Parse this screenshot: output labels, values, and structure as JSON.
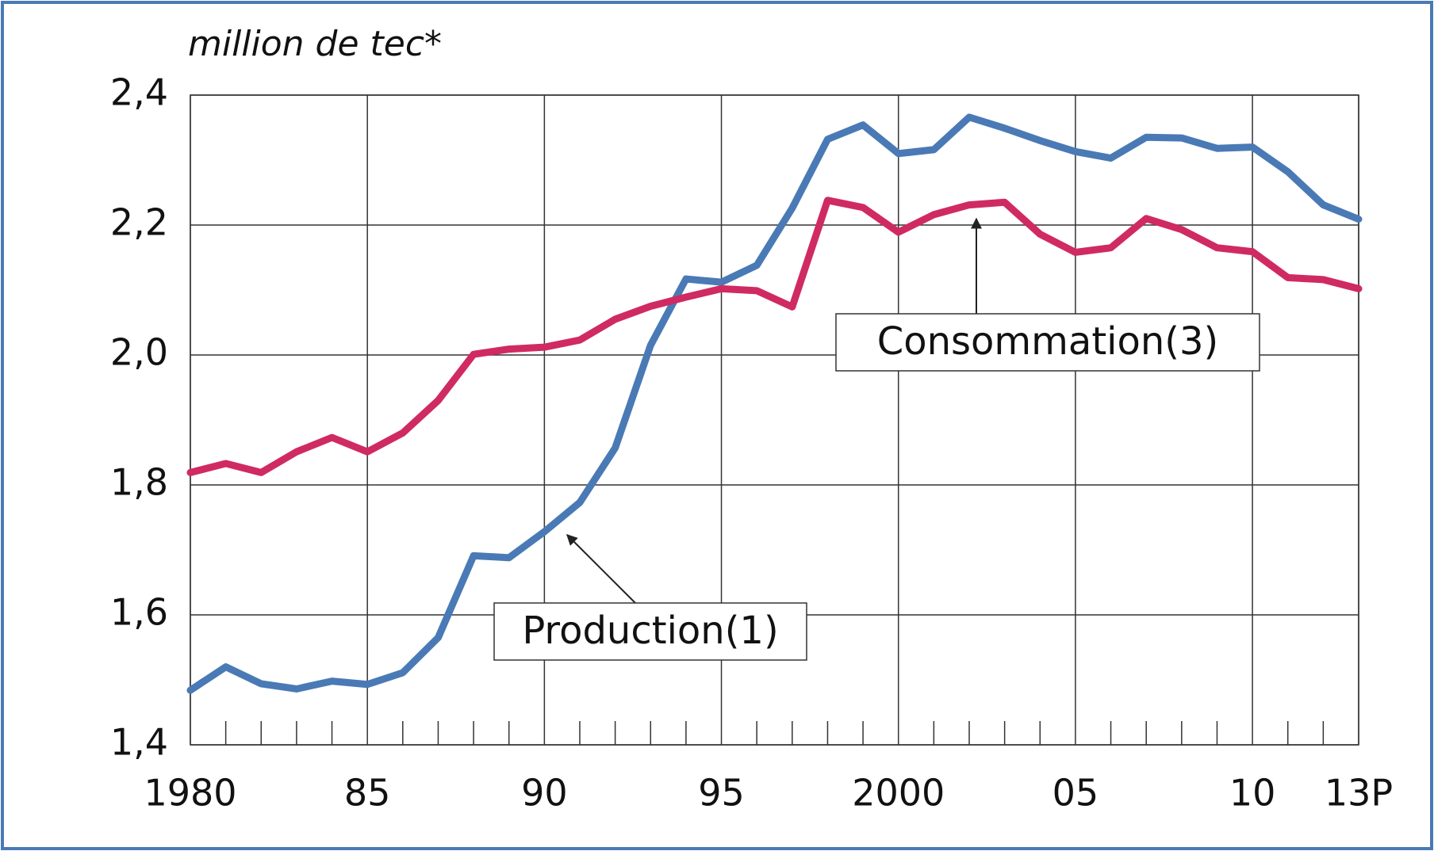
{
  "chart_data": {
    "type": "line",
    "y_axis_label": "million de tec*",
    "x": [
      1980,
      1981,
      1982,
      1983,
      1984,
      1985,
      1986,
      1987,
      1988,
      1989,
      1990,
      1991,
      1992,
      1993,
      1994,
      1995,
      1996,
      1997,
      1998,
      1999,
      2000,
      2001,
      2002,
      2003,
      2004,
      2005,
      2006,
      2007,
      2008,
      2009,
      2010,
      2011,
      2012,
      2013
    ],
    "series": [
      {
        "name": "Production(1)",
        "color": "#4a7ab5",
        "values": [
          1.484,
          1.52,
          1.494,
          1.486,
          1.498,
          1.493,
          1.511,
          1.565,
          1.691,
          1.688,
          1.728,
          1.773,
          1.857,
          2.015,
          2.117,
          2.112,
          2.138,
          2.226,
          2.332,
          2.354,
          2.31,
          2.316,
          2.366,
          2.349,
          2.33,
          2.313,
          2.303,
          2.335,
          2.334,
          2.318,
          2.32,
          2.282,
          2.231,
          2.209
        ]
      },
      {
        "name": "Consommation(3)",
        "color": "#d02a62",
        "values": [
          1.819,
          1.833,
          1.819,
          1.851,
          1.873,
          1.851,
          1.88,
          1.93,
          2.001,
          2.009,
          2.012,
          2.023,
          2.055,
          2.075,
          2.089,
          2.102,
          2.099,
          2.074,
          2.238,
          2.227,
          2.189,
          2.216,
          2.231,
          2.235,
          2.186,
          2.158,
          2.165,
          2.21,
          2.193,
          2.165,
          2.159,
          2.119,
          2.116,
          2.102
        ]
      }
    ],
    "xlim": [
      1980,
      2013
    ],
    "xticks": [
      1980,
      {
        "value": 1985,
        "label": "85"
      },
      {
        "value": 1990,
        "label": "90"
      },
      {
        "value": 1995,
        "label": "95"
      },
      2000,
      {
        "value": 2005,
        "label": "05"
      },
      {
        "value": 2010,
        "label": "10"
      },
      {
        "value": 2013,
        "label": "13P"
      }
    ],
    "xminorticks": [
      1981,
      1982,
      1983,
      1984,
      1986,
      1987,
      1988,
      1989,
      1991,
      1992,
      1993,
      1994,
      1996,
      1997,
      1998,
      1999,
      2001,
      2002,
      2003,
      2004,
      2006,
      2007,
      2008,
      2009,
      2011,
      2012
    ],
    "ylim": [
      1.4,
      2.4
    ],
    "yticks": [
      {
        "value": 1.4,
        "label": "1,4"
      },
      {
        "value": 1.6,
        "label": "1,6"
      },
      {
        "value": 1.8,
        "label": "1,8"
      },
      {
        "value": 2.0,
        "label": "2,0"
      },
      {
        "value": 2.2,
        "label": "2,2"
      },
      {
        "value": 2.4,
        "label": "2,4"
      }
    ],
    "grid": true
  }
}
